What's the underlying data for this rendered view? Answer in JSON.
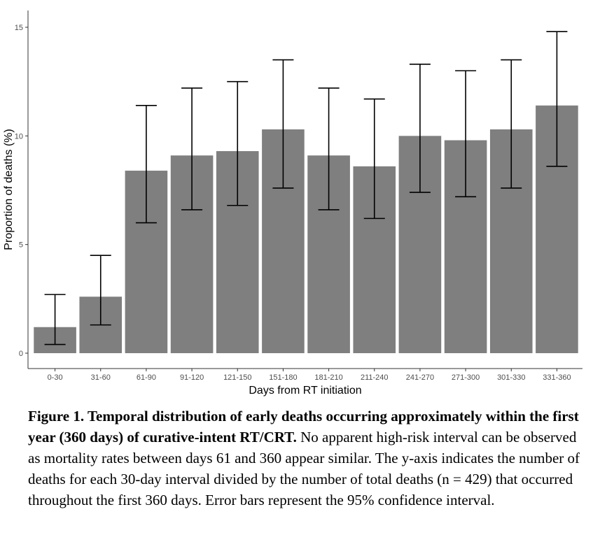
{
  "chart_data": {
    "type": "bar",
    "xlabel": "Days from RT initiation",
    "ylabel": "Proportion of deaths (%)",
    "ylim": [
      0,
      15.5
    ],
    "yticks": [
      0,
      5,
      10,
      15
    ],
    "grid": false,
    "bar_color": "#7f7f7f",
    "categories": [
      "0-30",
      "31-60",
      "61-90",
      "91-120",
      "121-150",
      "151-180",
      "181-210",
      "211-240",
      "241-270",
      "271-300",
      "301-330",
      "331-360"
    ],
    "values": [
      1.2,
      2.6,
      8.4,
      9.1,
      9.3,
      10.3,
      9.1,
      8.6,
      10.0,
      9.8,
      10.3,
      11.4
    ],
    "error_low": [
      0.4,
      1.3,
      6.0,
      6.6,
      6.8,
      7.6,
      6.6,
      6.2,
      7.4,
      7.2,
      7.6,
      8.6
    ],
    "error_high": [
      2.7,
      4.5,
      11.4,
      12.2,
      12.5,
      13.5,
      12.2,
      11.7,
      13.3,
      13.0,
      13.5,
      14.8
    ]
  },
  "caption": {
    "bold": "Figure 1. Temporal distribution of early deaths occurring approximately within the first year (360 days) of curative-intent RT/CRT.",
    "text": " No apparent high-risk interval can be observed as mortality rates between days 61 and 360 appear similar. The y-axis indicates the number of deaths for each 30-day interval divided by the number of total deaths (n = 429) that occurred throughout the first 360 days. Error bars represent the 95% confidence interval."
  }
}
